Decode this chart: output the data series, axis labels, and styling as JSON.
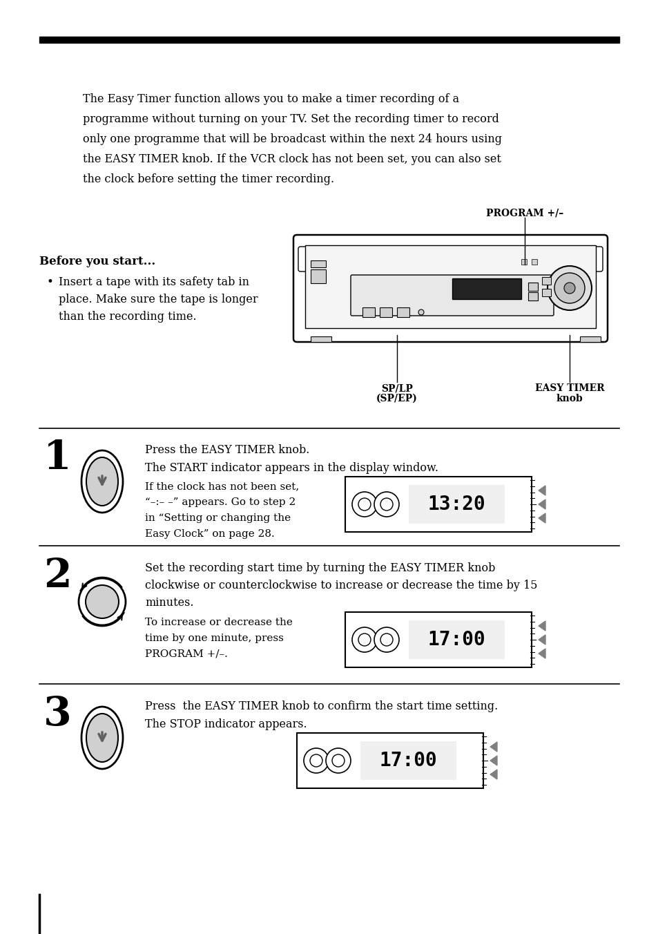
{
  "bg_color": "#ffffff",
  "text_color": "#000000",
  "intro_text": "The Easy Timer function allows you to make a timer recording of a\nprogramme without turning on your TV. Set the recording timer to record\nonly one programme that will be broadcast within the next 24 hours using\nthe EASY TIMER knob. If the VCR clock has not been set, you can also set\nthe clock before setting the timer recording.",
  "before_start_title": "Before you start...",
  "before_start_bullet": "Insert a tape with its safety tab in\nplace. Make sure the tape is longer\nthan the recording time.",
  "program_label": "PROGRAM +/–",
  "step1_num": "1",
  "step1_text1": "Press the EASY TIMER knob.",
  "step1_text2": "The START indicator appears in the display window.",
  "step1_text3": "If the clock has not been set,\n“–:– –” appears. Go to step 2\nin “Setting or changing the\nEasy Clock” on page 28.",
  "step1_display": "13:20",
  "step2_num": "2",
  "step2_text1": "Set the recording start time by turning the EASY TIMER knob\nclockwise or counterclockwise to increase or decrease the time by 15\nminutes.",
  "step2_text2": "To increase or decrease the\ntime by one minute, press\nPROGRAM +/–.",
  "step2_display": "17:00",
  "step3_num": "3",
  "step3_text1": "Press  the EASY TIMER knob to confirm the start time setting.",
  "step3_text2": "The STOP indicator appears.",
  "step3_display": "17:00"
}
